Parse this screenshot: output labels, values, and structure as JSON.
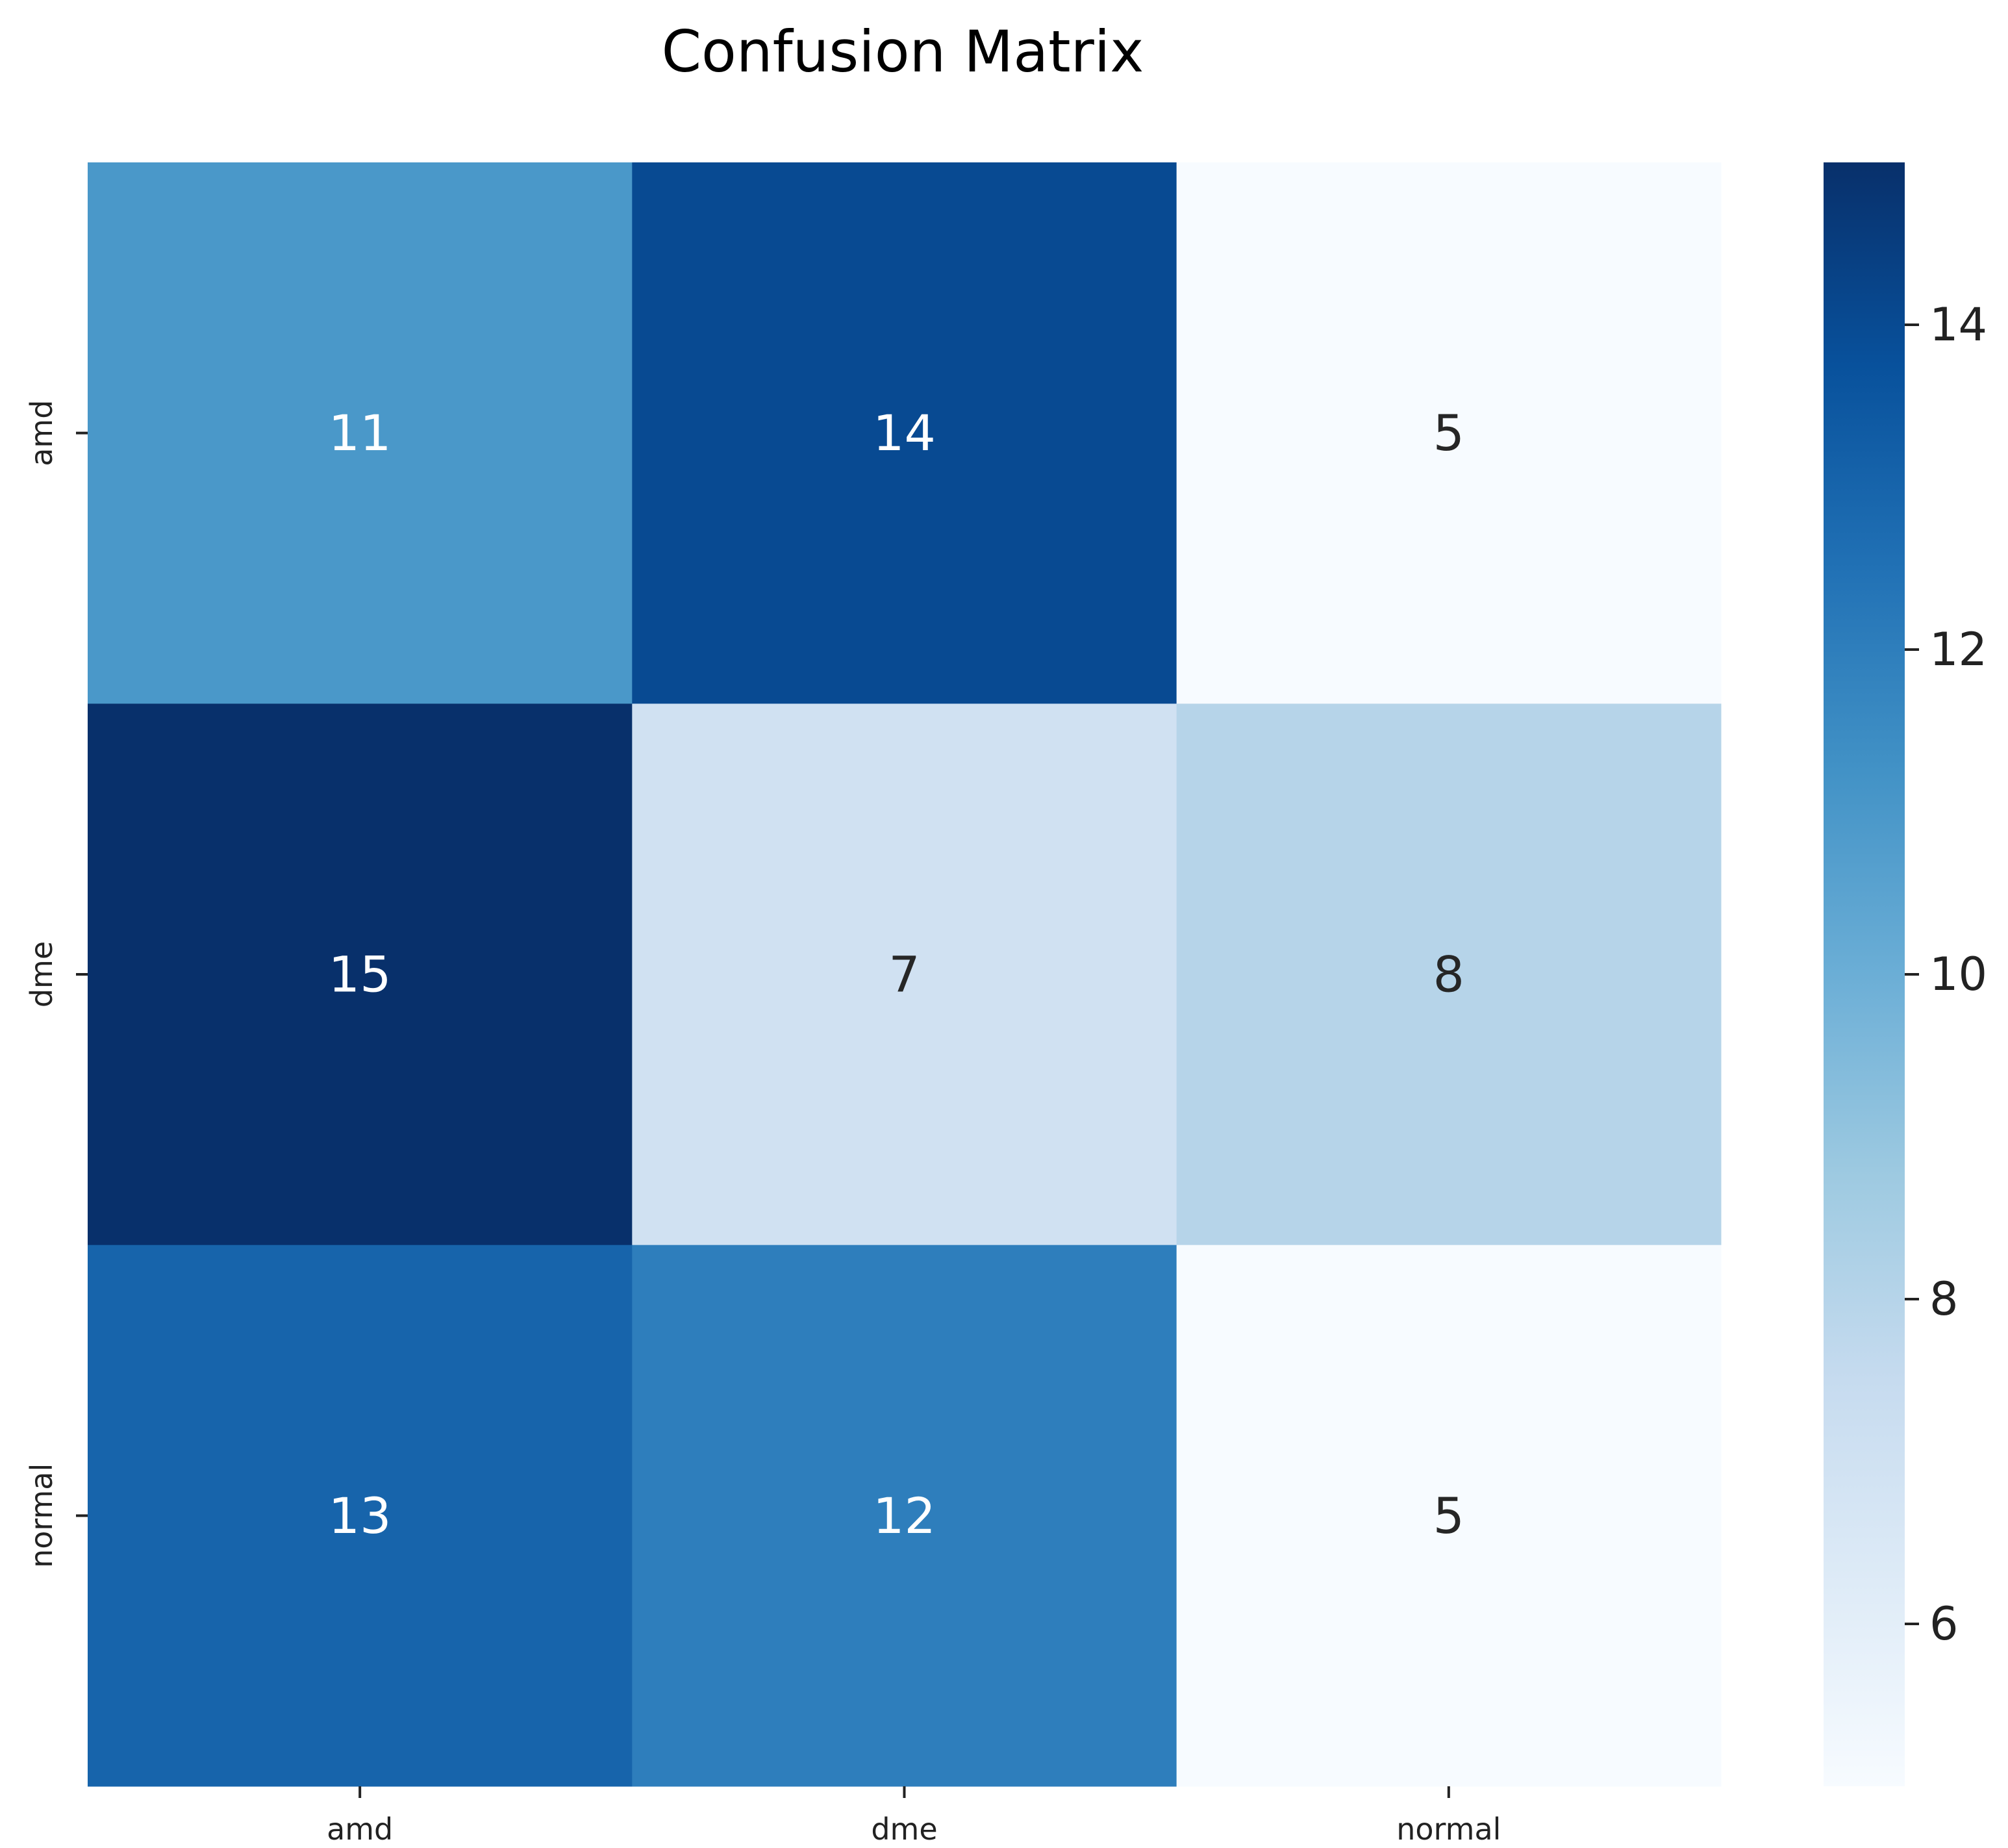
{
  "chart_data": {
    "type": "heatmap",
    "title": "Confusion Matrix",
    "xlabel": "",
    "ylabel": "",
    "x_categories": [
      "amd",
      "dme",
      "normal"
    ],
    "y_categories": [
      "amd",
      "dme",
      "normal"
    ],
    "matrix": [
      [
        11,
        14,
        5
      ],
      [
        15,
        7,
        8
      ],
      [
        13,
        12,
        5
      ]
    ],
    "colormap": "Blues",
    "colorbar": {
      "vmin": 5,
      "vmax": 15,
      "ticks": [
        6,
        8,
        10,
        12,
        14
      ]
    },
    "grid": false,
    "legend": "colorbar-right"
  }
}
